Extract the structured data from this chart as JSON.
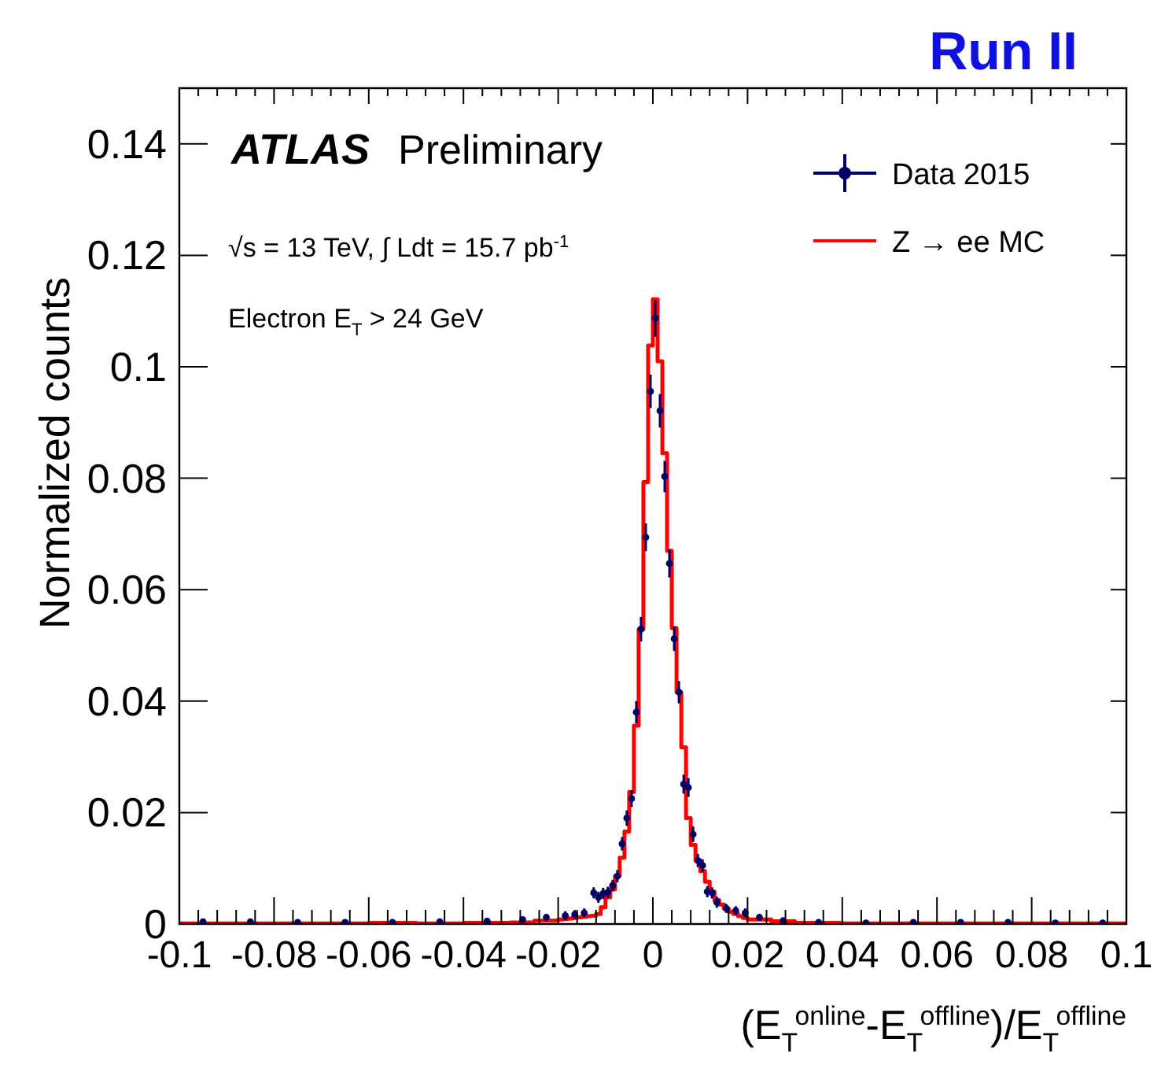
{
  "chart_data": {
    "type": "histogram",
    "title": "Run II",
    "xlabel": "(E$_{T}$$^{online}$-E$_{T}$$^{offline}$)/E$_{T}$$^{offline}$",
    "ylabel": "Normalized counts",
    "annotations": [
      "ATLAS",
      "Preliminary",
      "√s = 13 TeV, ∫ Ldt = 15.7 pb$^{-1}$",
      "Electron E$_{T}$ > 24 GeV"
    ],
    "xlim": [
      -0.1,
      0.1
    ],
    "xticks": [
      -0.1,
      -0.08,
      -0.06,
      -0.04,
      -0.02,
      0,
      0.02,
      0.04,
      0.06,
      0.08,
      0.1
    ],
    "ylim": [
      0,
      0.15
    ],
    "yticks": [
      0,
      0.02,
      0.04,
      0.06,
      0.08,
      0.1,
      0.12,
      0.14
    ],
    "grid": false,
    "legend": "top right",
    "bins": [
      -0.1,
      -0.09,
      -0.08,
      -0.07,
      -0.06,
      -0.05,
      -0.04,
      -0.03,
      -0.025,
      -0.02,
      -0.019,
      -0.018,
      -0.017,
      -0.016,
      -0.015,
      -0.014,
      -0.013,
      -0.012,
      -0.011,
      -0.01,
      -0.009,
      -0.008,
      -0.007,
      -0.006,
      -0.005,
      -0.004,
      -0.003,
      -0.002,
      -0.001,
      0,
      0.001,
      0.002,
      0.003,
      0.004,
      0.005,
      0.006,
      0.007,
      0.008,
      0.009,
      0.01,
      0.011,
      0.012,
      0.013,
      0.014,
      0.015,
      0.016,
      0.017,
      0.018,
      0.019,
      0.02,
      0.025,
      0.03,
      0.04,
      0.05,
      0.06,
      0.07,
      0.08,
      0.09,
      0.1
    ],
    "series": [
      {
        "name": "Data 2015",
        "type": "scatter",
        "marker": "circle",
        "color": "#000066",
        "x": [
          -0.095,
          -0.085,
          -0.075,
          -0.065,
          -0.055,
          -0.045,
          -0.035,
          -0.0275,
          -0.0225,
          -0.0185,
          -0.0165,
          -0.0145,
          -0.0125,
          -0.0115,
          -0.0105,
          -0.0095,
          -0.0085,
          -0.0075,
          -0.0065,
          -0.0055,
          -0.0045,
          -0.0035,
          -0.0025,
          -0.0015,
          -0.0005,
          0.0005,
          0.0015,
          0.0025,
          0.0035,
          0.0045,
          0.0055,
          0.0065,
          0.0075,
          0.0085,
          0.0095,
          0.0105,
          0.0115,
          0.0125,
          0.0135,
          0.0155,
          0.0175,
          0.0195,
          0.0225,
          0.0275,
          0.035,
          0.045,
          0.055,
          0.065,
          0.075,
          0.085,
          0.095
        ],
        "values": [
          0.0004,
          0.0004,
          0.0003,
          0.0003,
          0.0003,
          0.0004,
          0.0005,
          0.0008,
          0.0012,
          0.0015,
          0.0017,
          0.002,
          0.0056,
          0.0048,
          0.0055,
          0.0057,
          0.0069,
          0.0086,
          0.0144,
          0.019,
          0.0225,
          0.038,
          0.0529,
          0.0694,
          0.0956,
          0.1087,
          0.0921,
          0.0803,
          0.0647,
          0.0512,
          0.0416,
          0.0251,
          0.0245,
          0.0161,
          0.0114,
          0.0105,
          0.0058,
          0.0056,
          0.0039,
          0.0028,
          0.0024,
          0.002,
          0.0012,
          0.0006,
          0.0003,
          0.0002,
          0.0003,
          0.0003,
          0.0003,
          0.0002,
          0.0002
        ],
        "errors": [
          null,
          null,
          null,
          null,
          null,
          null,
          null,
          null,
          null,
          0.0008,
          0.0008,
          0.0008,
          0.001,
          0.001,
          0.001,
          0.001,
          0.001,
          0.0011,
          0.0012,
          0.0014,
          0.0015,
          0.002,
          0.0022,
          0.0025,
          0.003,
          0.0033,
          0.003,
          0.0028,
          0.0025,
          0.0022,
          0.002,
          0.0017,
          0.0017,
          0.0014,
          0.0012,
          0.0011,
          0.001,
          0.001,
          0.001,
          0.0008,
          0.0008,
          0.0008,
          null,
          null,
          null,
          null,
          null,
          null,
          null,
          null,
          null
        ]
      },
      {
        "name": "Z → ee MC",
        "type": "histogram",
        "color": "#ff0000",
        "values": [
          0.0001,
          0.0001,
          0.0001,
          0.0001,
          0.0002,
          0.0001,
          0.0002,
          0.0003,
          0.0006,
          0.0008,
          0.0009,
          0.001,
          0.0011,
          0.0012,
          0.0013,
          0.0014,
          0.0015,
          0.0018,
          0.003,
          0.0048,
          0.0062,
          0.0086,
          0.0119,
          0.0166,
          0.0237,
          0.0356,
          0.0529,
          0.0793,
          0.1038,
          0.1121,
          0.101,
          0.0845,
          0.067,
          0.0531,
          0.0416,
          0.0317,
          0.019,
          0.0142,
          0.0114,
          0.0095,
          0.0076,
          0.0058,
          0.0043,
          0.0035,
          0.0028,
          0.0022,
          0.0018,
          0.0014,
          0.0011,
          0.0008,
          0.0005,
          0.0002,
          0.0001,
          0.0001,
          0.0001,
          0.0001,
          0.0001,
          0.0001
        ]
      }
    ]
  }
}
